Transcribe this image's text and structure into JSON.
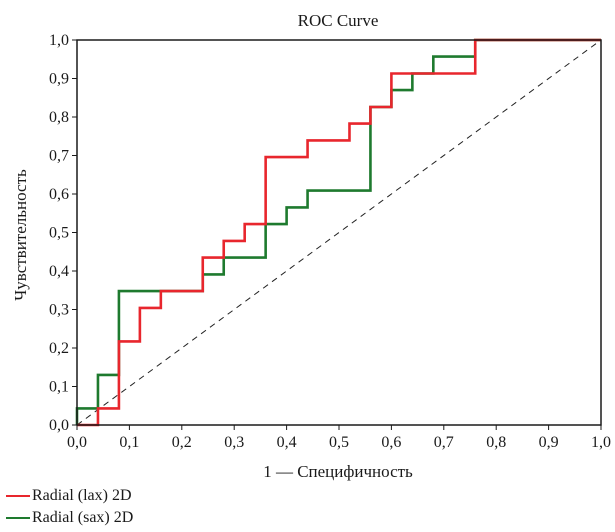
{
  "chart_data": {
    "type": "line",
    "title": "ROC Curve",
    "xlabel": "1 — Специфичность",
    "ylabel": "Чувствительность",
    "xlim": [
      0,
      1
    ],
    "ylim": [
      0,
      1
    ],
    "x_ticks": [
      "0,0",
      "0,1",
      "0,2",
      "0,3",
      "0,4",
      "0,5",
      "0,6",
      "0,7",
      "0,8",
      "0,9",
      "1,0"
    ],
    "y_ticks": [
      "0,0",
      "0,1",
      "0,2",
      "0,3",
      "0,4",
      "0,5",
      "0,6",
      "0,7",
      "0,8",
      "0,9",
      "1,0"
    ],
    "grid": false,
    "legend_position": "bottom-left",
    "reference_line": {
      "x": [
        0,
        1
      ],
      "y": [
        0,
        1
      ],
      "style": "dashed"
    },
    "series": [
      {
        "name": "Radial (lax) 2D",
        "color": "#e8262d",
        "x": [
          0,
          0.04,
          0.04,
          0.08,
          0.08,
          0.12,
          0.12,
          0.16,
          0.16,
          0.24,
          0.24,
          0.28,
          0.28,
          0.32,
          0.32,
          0.36,
          0.36,
          0.44,
          0.44,
          0.52,
          0.52,
          0.56,
          0.56,
          0.6,
          0.6,
          0.76,
          0.76,
          1
        ],
        "y": [
          0,
          0,
          0.043,
          0.043,
          0.217,
          0.217,
          0.304,
          0.304,
          0.348,
          0.348,
          0.435,
          0.435,
          0.478,
          0.478,
          0.522,
          0.522,
          0.696,
          0.696,
          0.739,
          0.739,
          0.783,
          0.783,
          0.826,
          0.826,
          0.913,
          0.913,
          1,
          1
        ]
      },
      {
        "name": "Radial (sax) 2D",
        "color": "#1e7a2e",
        "x": [
          0,
          0,
          0.04,
          0.04,
          0.08,
          0.08,
          0.24,
          0.24,
          0.28,
          0.28,
          0.36,
          0.36,
          0.4,
          0.4,
          0.44,
          0.44,
          0.56,
          0.56,
          0.6,
          0.6,
          0.64,
          0.64,
          0.68,
          0.68,
          0.76,
          0.76,
          1
        ],
        "y": [
          0,
          0.043,
          0.043,
          0.13,
          0.13,
          0.348,
          0.348,
          0.391,
          0.391,
          0.435,
          0.435,
          0.522,
          0.522,
          0.565,
          0.565,
          0.609,
          0.609,
          0.826,
          0.826,
          0.87,
          0.87,
          0.913,
          0.913,
          0.957,
          0.957,
          1,
          1
        ]
      }
    ]
  }
}
